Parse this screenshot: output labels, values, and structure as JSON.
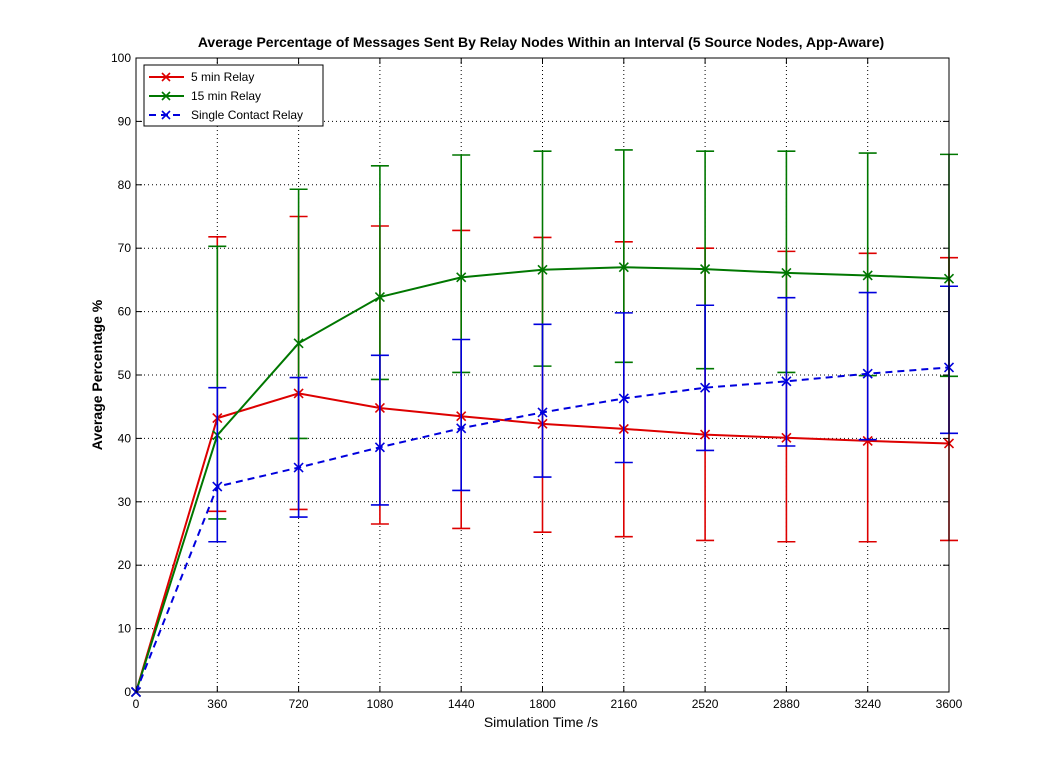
{
  "chart_data": {
    "type": "line",
    "title": "Average Percentage of Messages Sent By Relay Nodes Within an Interval (5 Source Nodes, App-Aware)",
    "xlabel": "Simulation Time /s",
    "ylabel": "Average Percentage %",
    "xlim": [
      0,
      3600
    ],
    "ylim": [
      0,
      100
    ],
    "xticks": [
      0,
      360,
      720,
      1080,
      1440,
      1800,
      2160,
      2520,
      2880,
      3240,
      3600
    ],
    "yticks": [
      0,
      10,
      20,
      30,
      40,
      50,
      60,
      70,
      80,
      90,
      100
    ],
    "grid": true,
    "legend_position": "top-left",
    "x": [
      0,
      360,
      720,
      1080,
      1440,
      1800,
      2160,
      2520,
      2880,
      3240,
      3600
    ],
    "series": [
      {
        "name": "5 min Relay",
        "color": "#dd0000",
        "line_style": "solid",
        "marker": "x",
        "values": [
          0,
          43.2,
          47.1,
          44.8,
          43.5,
          42.3,
          41.5,
          40.6,
          40.1,
          39.6,
          39.2
        ],
        "error_low": [
          0,
          28.5,
          28.8,
          26.5,
          25.8,
          25.2,
          24.5,
          23.9,
          23.7,
          23.7,
          23.9
        ],
        "error_high": [
          0,
          71.8,
          75.0,
          73.5,
          72.8,
          71.7,
          71.0,
          70.0,
          69.5,
          69.2,
          68.5
        ]
      },
      {
        "name": "15 min Relay",
        "color": "#007700",
        "line_style": "solid",
        "marker": "x",
        "values": [
          0,
          40.5,
          55.0,
          62.3,
          65.4,
          66.6,
          67.0,
          66.7,
          66.1,
          65.7,
          65.2
        ],
        "error_low": [
          0,
          27.3,
          40.0,
          49.3,
          50.4,
          51.4,
          52.0,
          51.0,
          50.4,
          49.9,
          49.8
        ],
        "error_high": [
          0,
          70.3,
          79.3,
          83.0,
          84.7,
          85.3,
          85.5,
          85.3,
          85.3,
          85.0,
          84.8
        ]
      },
      {
        "name": "Single Contact Relay",
        "color": "#0000dd",
        "line_style": "dashed",
        "marker": "x",
        "values": [
          0,
          32.4,
          35.4,
          38.6,
          41.6,
          44.1,
          46.3,
          48.0,
          49.0,
          50.2,
          51.2
        ],
        "error_low": [
          0,
          23.7,
          27.6,
          29.5,
          31.8,
          33.9,
          36.2,
          38.1,
          38.8,
          39.8,
          40.8
        ],
        "error_high": [
          0,
          48.0,
          49.6,
          53.1,
          55.6,
          58.0,
          59.8,
          61.0,
          62.2,
          63.0,
          64.0
        ]
      }
    ]
  }
}
